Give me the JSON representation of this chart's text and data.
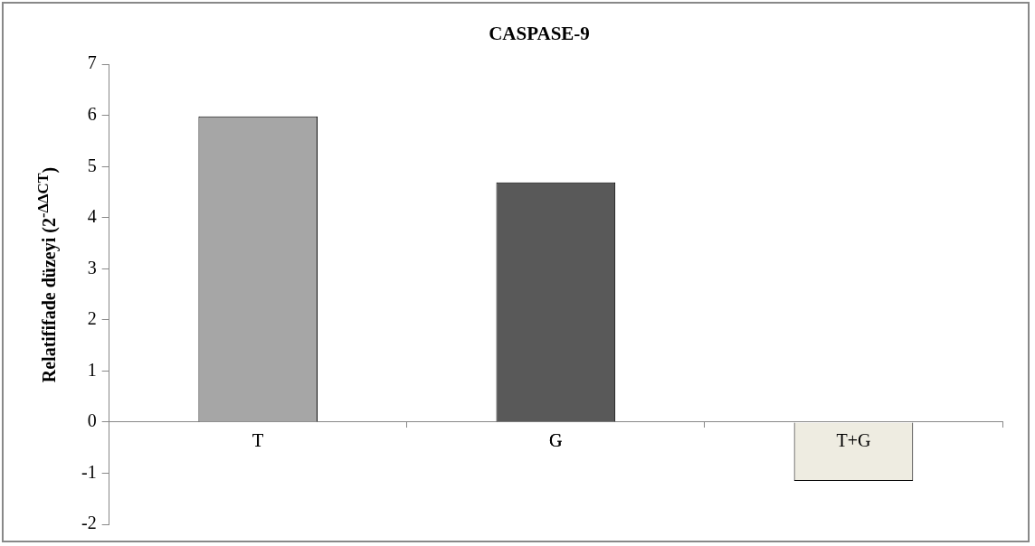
{
  "chart_data": {
    "type": "bar",
    "title": "CASPASE-9",
    "ylabel": "Relatififade düzeyi (2$^{-ΔΔCT}$)",
    "categories": [
      "T",
      "G",
      "T+G"
    ],
    "values": [
      5.98,
      4.69,
      -1.15
    ],
    "colors": [
      "#a6a6a6",
      "#595959",
      "#eeece1"
    ],
    "ylim": [
      -2,
      7
    ],
    "yticks": [
      -2,
      -1,
      0,
      1,
      2,
      3,
      4,
      5,
      6,
      7
    ],
    "grid": false,
    "legend": false
  }
}
